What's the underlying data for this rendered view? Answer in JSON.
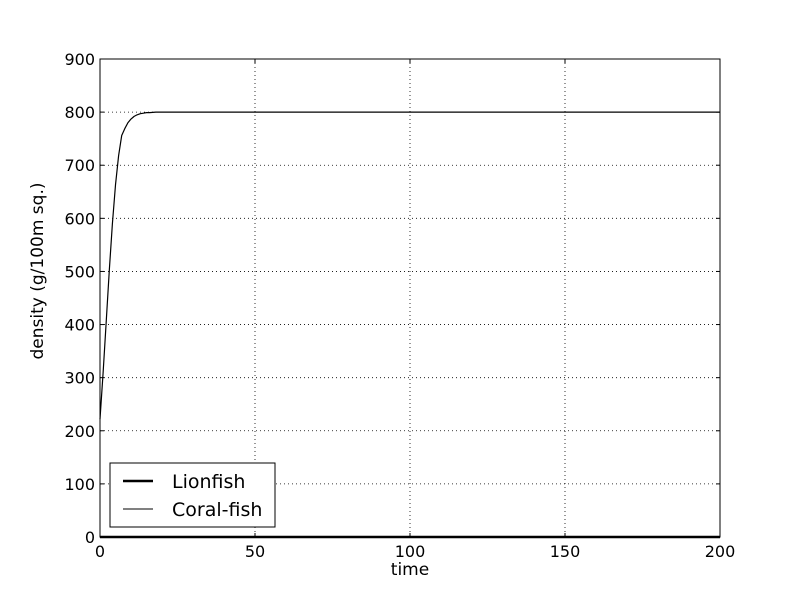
{
  "chart_data": {
    "type": "line",
    "title": "",
    "xlabel": "time",
    "ylabel": "density (g/100m sq.)",
    "xlim": [
      0,
      200
    ],
    "ylim": [
      0,
      900
    ],
    "xticks": [
      0,
      50,
      100,
      150,
      200
    ],
    "yticks": [
      0,
      100,
      200,
      300,
      400,
      500,
      600,
      700,
      800,
      900
    ],
    "grid": true,
    "legend_position": "bottom-left",
    "series": [
      {
        "name": "Lionfish",
        "color": "#000000",
        "style": "thick",
        "x": [
          0,
          1,
          2,
          3,
          4,
          5,
          6,
          8,
          10,
          15,
          20,
          50,
          100,
          150,
          200
        ],
        "y": [
          0,
          0,
          0,
          0,
          0,
          0,
          0,
          0,
          0,
          0,
          0,
          0,
          0,
          0,
          0
        ]
      },
      {
        "name": "Coral-fish",
        "color": "#000000",
        "style": "thin",
        "x": [
          0,
          1,
          2,
          3,
          4,
          5,
          6,
          7,
          8,
          9,
          10,
          11,
          12,
          13,
          14,
          15,
          16,
          18,
          20,
          25,
          30,
          50,
          100,
          150,
          200
        ],
        "y": [
          222,
          309,
          405,
          502,
          590,
          663,
          718,
          756,
          769,
          780,
          787,
          792,
          795,
          797,
          798,
          799,
          799,
          800,
          800,
          800,
          800,
          800,
          800,
          800,
          800
        ]
      }
    ]
  }
}
